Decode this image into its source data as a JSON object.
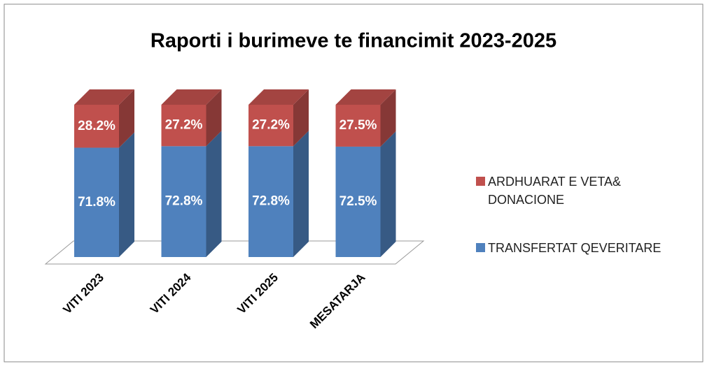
{
  "chart_data": {
    "type": "bar",
    "stacked": true,
    "three_d": true,
    "title": "Raporti i burimeve te financimit 2023-2025",
    "categories": [
      "VITI 2023",
      "VITI 2024",
      "VITI 2025",
      "MESATARJA"
    ],
    "series": [
      {
        "name": "TRANSFERTAT QEVERITARE",
        "color": "#4f81bd",
        "values": [
          71.8,
          72.8,
          72.8,
          72.5
        ],
        "value_labels": [
          "71.8%",
          "72.8%",
          "72.8%",
          "72.5%"
        ]
      },
      {
        "name": "ARDHUARAT E VETA& DONACIONE",
        "color": "#c0504d",
        "values": [
          28.2,
          27.2,
          27.2,
          27.5
        ],
        "value_labels": [
          "28.2%",
          "27.2%",
          "27.2%",
          "27.5%"
        ]
      }
    ],
    "ylim": [
      0,
      100
    ],
    "legend": "right"
  }
}
